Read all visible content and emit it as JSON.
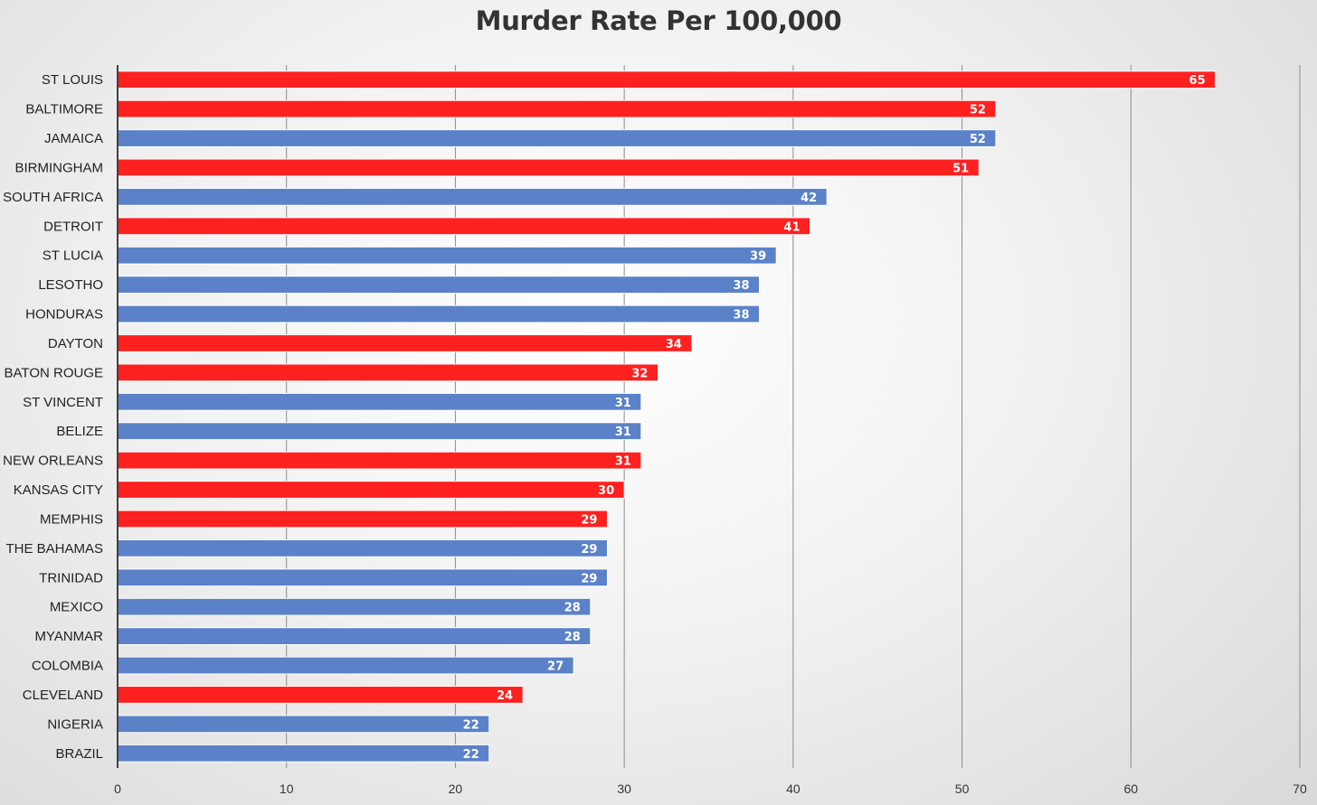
{
  "chart_data": {
    "type": "bar",
    "orientation": "horizontal",
    "title": "Murder Rate Per 100,000",
    "xlabel": "",
    "ylabel": "",
    "xlim": [
      0,
      70
    ],
    "x_ticks": [
      0,
      10,
      20,
      30,
      40,
      50,
      60,
      70
    ],
    "grid": true,
    "legend": "none",
    "data_labels": true,
    "categories": [
      "ST LOUIS",
      "BALTIMORE",
      "JAMAICA",
      "BIRMINGHAM",
      "SOUTH AFRICA",
      "DETROIT",
      "ST LUCIA",
      "LESOTHO",
      "HONDURAS",
      "DAYTON",
      "BATON ROUGE",
      "ST VINCENT",
      "BELIZE",
      "NEW ORLEANS",
      "KANSAS CITY",
      "MEMPHIS",
      "THE BAHAMAS",
      "TRINIDAD",
      "MEXICO",
      "MYANMAR",
      "COLOMBIA",
      "CLEVELAND",
      "NIGERIA",
      "BRAZIL"
    ],
    "values": [
      65,
      52,
      52,
      51,
      42,
      41,
      39,
      38,
      38,
      34,
      32,
      31,
      31,
      31,
      30,
      29,
      29,
      29,
      28,
      28,
      27,
      24,
      22,
      22
    ],
    "bar_colors": [
      "#ff2020",
      "#ff2020",
      "#5b82c8",
      "#ff2020",
      "#5b82c8",
      "#ff2020",
      "#5b82c8",
      "#5b82c8",
      "#5b82c8",
      "#ff2020",
      "#ff2020",
      "#5b82c8",
      "#5b82c8",
      "#ff2020",
      "#ff2020",
      "#ff2020",
      "#5b82c8",
      "#5b82c8",
      "#5b82c8",
      "#5b82c8",
      "#5b82c8",
      "#ff2020",
      "#5b82c8",
      "#5b82c8"
    ]
  },
  "colors": {
    "red": "#ff2020",
    "blue": "#5b82c8",
    "gridline": "#8c8c8c",
    "axis": "#404040"
  }
}
